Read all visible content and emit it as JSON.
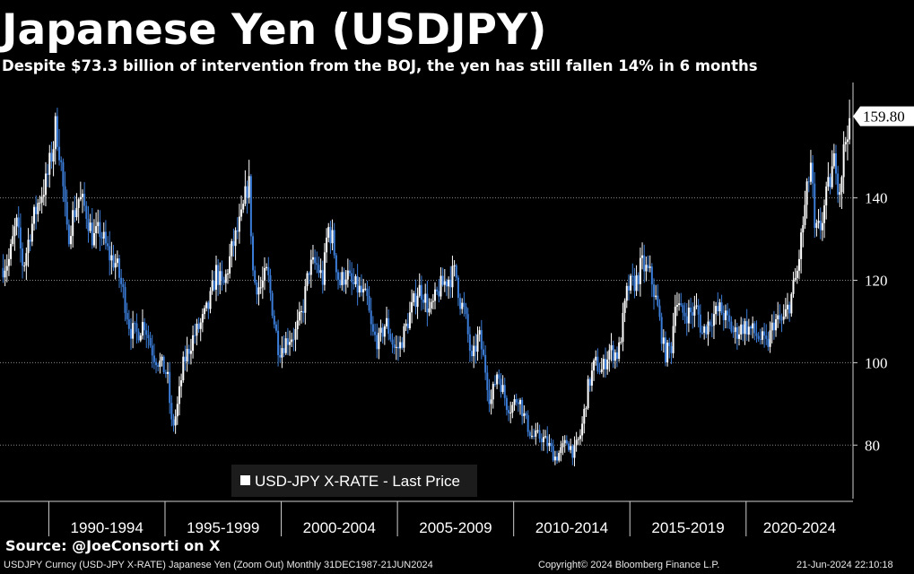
{
  "chart_data": {
    "type": "candlestick",
    "title": "Japanese Yen (USDJPY)",
    "subtitle": "Despite $73.3 billion of intervention from the BOJ, the yen has still fallen 14% in 6 months",
    "legend": {
      "label": "USD-JPY X-RATE - Last Price",
      "position": "bottom-left"
    },
    "y_axis": {
      "position": "right",
      "ylim": [
        67,
        168
      ],
      "ticks": [
        80,
        100,
        120,
        140
      ],
      "last_price_label": "159.80"
    },
    "x_axis": {
      "xlim": [
        1987.9,
        2024.6
      ],
      "period_labels": [
        "1990-1994",
        "1995-1999",
        "2000-2004",
        "2005-2009",
        "2010-2014",
        "2015-2019",
        "2020-2024"
      ]
    },
    "grid": "horizontal dotted",
    "colors": {
      "up": "#ffffff",
      "down": "#3b7dd8",
      "background": "#000000"
    },
    "series": [
      {
        "name": "USD-JPY X-RATE - Last Price",
        "keypoints": [
          [
            1987.95,
            123
          ],
          [
            1988.3,
            125
          ],
          [
            1988.6,
            134
          ],
          [
            1988.9,
            123
          ],
          [
            1989.2,
            132
          ],
          [
            1989.6,
            140
          ],
          [
            1989.9,
            144
          ],
          [
            1990.2,
            153
          ],
          [
            1990.3,
            158
          ],
          [
            1990.5,
            150
          ],
          [
            1990.8,
            130
          ],
          [
            1991.0,
            135
          ],
          [
            1991.3,
            140
          ],
          [
            1991.6,
            137
          ],
          [
            1991.9,
            130
          ],
          [
            1992.2,
            132
          ],
          [
            1992.6,
            126
          ],
          [
            1992.9,
            124
          ],
          [
            1993.2,
            117
          ],
          [
            1993.5,
            108
          ],
          [
            1993.8,
            107
          ],
          [
            1994.1,
            110
          ],
          [
            1994.5,
            102
          ],
          [
            1994.9,
            99
          ],
          [
            1995.1,
            97
          ],
          [
            1995.3,
            84
          ],
          [
            1995.5,
            88
          ],
          [
            1995.8,
            100
          ],
          [
            1996.2,
            106
          ],
          [
            1996.6,
            110
          ],
          [
            1996.9,
            114
          ],
          [
            1997.2,
            122
          ],
          [
            1997.5,
            118
          ],
          [
            1997.9,
            128
          ],
          [
            1998.3,
            135
          ],
          [
            1998.6,
            145
          ],
          [
            1998.8,
            120
          ],
          [
            1999.1,
            118
          ],
          [
            1999.4,
            122
          ],
          [
            1999.7,
            110
          ],
          [
            1999.9,
            103
          ],
          [
            2000.3,
            106
          ],
          [
            2000.6,
            107
          ],
          [
            2000.9,
            112
          ],
          [
            2001.2,
            123
          ],
          [
            2001.5,
            124
          ],
          [
            2001.8,
            120
          ],
          [
            2002.0,
            133
          ],
          [
            2002.2,
            130
          ],
          [
            2002.5,
            119
          ],
          [
            2002.8,
            122
          ],
          [
            2003.0,
            119
          ],
          [
            2003.3,
            118
          ],
          [
            2003.7,
            115
          ],
          [
            2003.9,
            107
          ],
          [
            2004.2,
            105
          ],
          [
            2004.5,
            110
          ],
          [
            2004.9,
            103
          ],
          [
            2005.1,
            104
          ],
          [
            2005.5,
            111
          ],
          [
            2005.9,
            118
          ],
          [
            2006.1,
            117
          ],
          [
            2006.4,
            112
          ],
          [
            2006.8,
            118
          ],
          [
            2007.1,
            120
          ],
          [
            2007.5,
            122
          ],
          [
            2007.7,
            115
          ],
          [
            2007.9,
            112
          ],
          [
            2008.2,
            100
          ],
          [
            2008.5,
            107
          ],
          [
            2008.8,
            98
          ],
          [
            2009.0,
            90
          ],
          [
            2009.3,
            98
          ],
          [
            2009.7,
            90
          ],
          [
            2009.9,
            89
          ],
          [
            2010.2,
            92
          ],
          [
            2010.5,
            86
          ],
          [
            2010.8,
            82
          ],
          [
            2011.2,
            82
          ],
          [
            2011.5,
            80
          ],
          [
            2011.8,
            77
          ],
          [
            2012.1,
            79
          ],
          [
            2012.3,
            81
          ],
          [
            2012.6,
            78
          ],
          [
            2012.9,
            83
          ],
          [
            2013.2,
            94
          ],
          [
            2013.5,
            100
          ],
          [
            2013.8,
            98
          ],
          [
            2014.1,
            103
          ],
          [
            2014.5,
            102
          ],
          [
            2014.9,
            118
          ],
          [
            2015.3,
            120
          ],
          [
            2015.5,
            124
          ],
          [
            2015.9,
            121
          ],
          [
            2016.2,
            113
          ],
          [
            2016.5,
            102
          ],
          [
            2016.8,
            104
          ],
          [
            2016.95,
            116
          ],
          [
            2017.2,
            112
          ],
          [
            2017.6,
            112
          ],
          [
            2017.9,
            113
          ],
          [
            2018.1,
            107
          ],
          [
            2018.5,
            111
          ],
          [
            2018.9,
            113
          ],
          [
            2019.2,
            110
          ],
          [
            2019.5,
            107
          ],
          [
            2019.9,
            109
          ],
          [
            2020.2,
            108
          ],
          [
            2020.6,
            106
          ],
          [
            2020.9,
            104
          ],
          [
            2021.2,
            110
          ],
          [
            2021.6,
            110
          ],
          [
            2021.9,
            115
          ],
          [
            2022.2,
            122
          ],
          [
            2022.5,
            136
          ],
          [
            2022.8,
            149
          ],
          [
            2022.95,
            131
          ],
          [
            2023.2,
            133
          ],
          [
            2023.6,
            144
          ],
          [
            2023.85,
            150
          ],
          [
            2024.0,
            141
          ],
          [
            2024.2,
            151
          ],
          [
            2024.35,
            157
          ],
          [
            2024.47,
            159.8
          ]
        ]
      }
    ]
  },
  "source": "Source: @JoeConsorti on X",
  "footer": {
    "security": "USDJPY Curncy (USD-JPY X-RATE) Japanese Yen (Zoom Out)  Monthly 31DEC1987-21JUN2024",
    "copyright": "Copyright© 2024 Bloomberg Finance L.P.",
    "timestamp": "21-Jun-2024 22:10:18"
  }
}
